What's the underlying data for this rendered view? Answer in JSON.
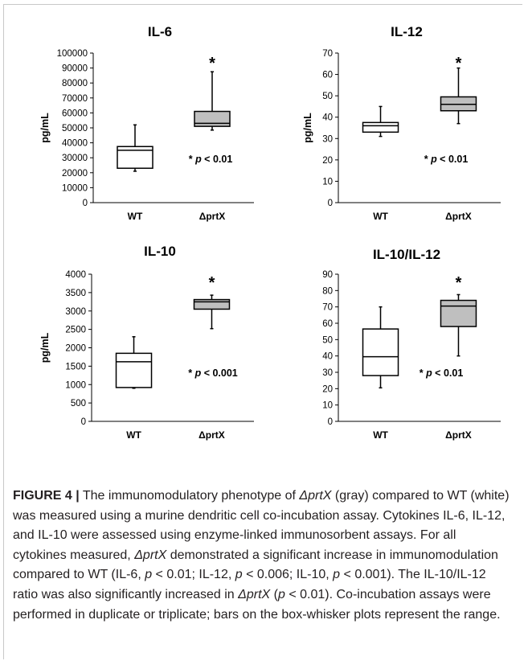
{
  "chart_data": [
    {
      "type": "box",
      "title": "IL-6",
      "ylabel": "pg/mL",
      "ylim": [
        0,
        100000
      ],
      "yticks": [
        "0",
        "10000",
        "20000",
        "30000",
        "40000",
        "50000",
        "60000",
        "70000",
        "80000",
        "90000",
        "100000"
      ],
      "yticks_values": [
        0,
        10000,
        20000,
        30000,
        40000,
        50000,
        60000,
        70000,
        80000,
        90000,
        100000
      ],
      "categories": [
        "WT",
        "ΔprtX"
      ],
      "boxes": [
        {
          "min": 21000,
          "q1": 23000,
          "median": 35000,
          "q3": 37500,
          "max": 52000,
          "fill": "#ffffff"
        },
        {
          "min": 48500,
          "q1": 51000,
          "median": 53000,
          "q3": 61000,
          "max": 87500,
          "fill": "#bfbfbf"
        }
      ],
      "significance_marker": "*",
      "annotation": {
        "prefix": "* ",
        "p": "p",
        "rest": " < 0.01"
      }
    },
    {
      "type": "box",
      "title": "IL-12",
      "ylabel": "pg/mL",
      "ylim": [
        0,
        70
      ],
      "yticks": [
        "0",
        "10",
        "20",
        "30",
        "40",
        "50",
        "60",
        "70"
      ],
      "yticks_values": [
        0,
        10,
        20,
        30,
        40,
        50,
        60,
        70
      ],
      "categories": [
        "WT",
        "ΔprtX"
      ],
      "boxes": [
        {
          "min": 31,
          "q1": 33,
          "median": 36,
          "q3": 37.5,
          "max": 45,
          "fill": "#ffffff"
        },
        {
          "min": 37,
          "q1": 43,
          "median": 46,
          "q3": 49.5,
          "max": 63,
          "fill": "#bfbfbf"
        }
      ],
      "significance_marker": "*",
      "annotation": {
        "prefix": "* ",
        "p": "p",
        "rest": " < 0.01"
      }
    },
    {
      "type": "box",
      "title": "IL-10",
      "ylabel": "pg/mL",
      "ylim": [
        0,
        4000
      ],
      "yticks": [
        "0",
        "500",
        "1000",
        "1500",
        "2000",
        "2500",
        "3000",
        "3500",
        "4000"
      ],
      "yticks_values": [
        0,
        500,
        1000,
        1500,
        2000,
        2500,
        3000,
        3500,
        4000
      ],
      "categories": [
        "WT",
        "ΔprtX"
      ],
      "boxes": [
        {
          "min": 900,
          "q1": 920,
          "median": 1620,
          "q3": 1850,
          "max": 2300,
          "fill": "#ffffff"
        },
        {
          "min": 2520,
          "q1": 3050,
          "median": 3250,
          "q3": 3310,
          "max": 3430,
          "fill": "#bfbfbf"
        }
      ],
      "significance_marker": "*",
      "annotation": {
        "prefix": "* ",
        "p": "p",
        "rest": " < 0.001"
      }
    },
    {
      "type": "box",
      "title": "IL-10/IL-12",
      "ylabel": "",
      "ylim": [
        0,
        90
      ],
      "yticks": [
        "0",
        "10",
        "20",
        "30",
        "40",
        "50",
        "60",
        "70",
        "80",
        "90"
      ],
      "yticks_values": [
        0,
        10,
        20,
        30,
        40,
        50,
        60,
        70,
        80,
        90
      ],
      "categories": [
        "WT",
        "ΔprtX"
      ],
      "boxes": [
        {
          "min": 20.5,
          "q1": 28,
          "median": 39.5,
          "q3": 56.5,
          "max": 70,
          "fill": "#ffffff"
        },
        {
          "min": 40,
          "q1": 58,
          "median": 70.5,
          "q3": 74,
          "max": 77.5,
          "fill": "#bfbfbf"
        }
      ],
      "significance_marker": "*",
      "annotation": {
        "prefix": "* ",
        "p": "p",
        "rest": " < 0.01"
      }
    }
  ],
  "caption": {
    "label": "FIGURE 4 |",
    "s1": " The immunomodulatory phenotype of ",
    "delta1": "ΔprtX",
    "s2": " (gray) compared to WT (white) was measured using a murine dendritic cell co-incubation assay. Cytokines IL-6, IL-12, and IL-10 were assessed using enzyme-linked immunosorbent assays. For all cytokines measured, ",
    "delta2": "ΔprtX",
    "s3": " demonstrated a significant increase in immunomodulation compared to WT (IL-6, ",
    "p1": "p",
    "s4": " < 0.01; IL-12, ",
    "p2": "p",
    "s5": " < 0.006; IL-10, ",
    "p3": "p",
    "s6": " < 0.001). The IL-10/IL-12 ratio was also significantly increased in ",
    "delta3": "ΔprtX",
    "s7": " (",
    "p4": "p",
    "s8": " < 0.01). Co-incubation assays were performed in duplicate or triplicate; bars on the box-whisker plots represent the range."
  }
}
